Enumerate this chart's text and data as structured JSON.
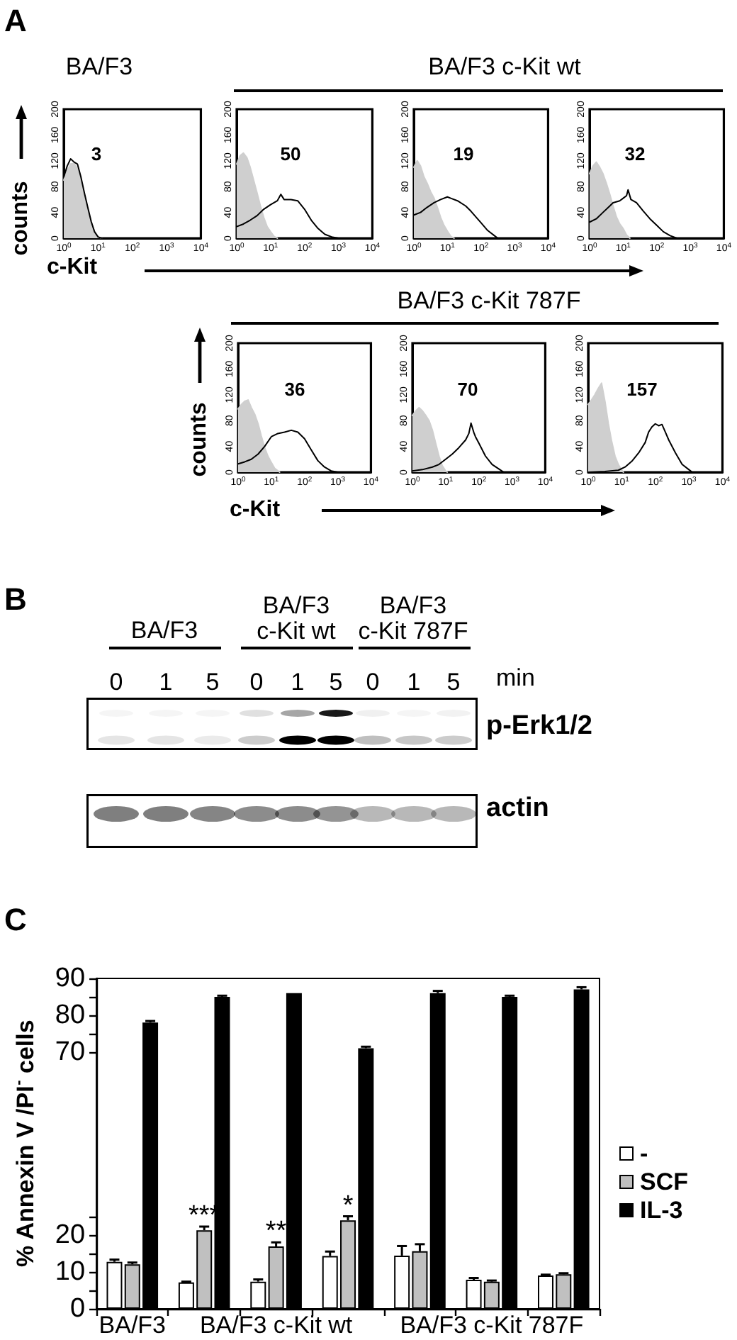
{
  "chart_data": [
    {
      "type": "line",
      "title": "BA/F3",
      "xlabel": "c-Kit",
      "ylabel": "counts",
      "annotations": [
        "A",
        "3"
      ],
      "log": "x",
      "xlim": [
        1,
        10000
      ],
      "xticks": [
        {
          "value": 1,
          "label": "10$^{0}$"
        },
        {
          "value": 10,
          "label": "10$^{1}$"
        },
        {
          "value": 100,
          "label": "10$^{2}$"
        },
        {
          "value": 1000,
          "label": "10$^{3}$"
        },
        {
          "value": 10000,
          "label": "10$^{4}$"
        }
      ],
      "ylim": [
        0,
        200
      ],
      "yticks": [
        0,
        40,
        80,
        120,
        160,
        200
      ],
      "series": [
        {
          "type": "area",
          "color": "#cfcfcf",
          "x": [
            1,
            1.26,
            1.58,
            2,
            2.5,
            3.16,
            4,
            5,
            6.3,
            7.9,
            10,
            12.6
          ],
          "values": [
            90,
            105,
            115,
            116,
            108,
            90,
            65,
            45,
            25,
            10,
            2,
            0
          ]
        },
        {
          "type": "line",
          "color": "#000000",
          "x": [
            1,
            1.26,
            1.58,
            2,
            2.5,
            3.16,
            4,
            5,
            6.3,
            7.9,
            10,
            12.6
          ],
          "values": [
            95,
            112,
            123,
            118,
            115,
            95,
            70,
            48,
            26,
            10,
            2,
            0
          ]
        }
      ]
    },
    {
      "type": "line",
      "annotations": [
        "50"
      ],
      "log": "x",
      "xlim": [
        1,
        10000
      ],
      "xticks": [
        {
          "value": 1,
          "label": "10$^{0}$"
        },
        {
          "value": 10,
          "label": "10$^{1}$"
        },
        {
          "value": 100,
          "label": "10$^{2}$"
        },
        {
          "value": 1000,
          "label": "10$^{3}$"
        },
        {
          "value": 10000,
          "label": "10$^{4}$"
        }
      ],
      "ylim": [
        0,
        200
      ],
      "yticks": [
        0,
        40,
        80,
        120,
        160,
        200
      ],
      "series": [
        {
          "type": "area",
          "color": "#cfcfcf",
          "x": [
            1,
            1.26,
            1.58,
            2,
            2.5,
            3.16,
            4,
            5,
            6.3,
            7.9,
            10,
            12.6,
            15.8
          ],
          "values": [
            115,
            128,
            132,
            125,
            110,
            90,
            70,
            50,
            32,
            18,
            10,
            3,
            0
          ]
        },
        {
          "type": "line",
          "color": "#000000",
          "x": [
            1,
            1.58,
            2.5,
            4,
            6.3,
            10,
            15.8,
            20,
            25,
            40,
            63,
            100,
            158,
            251,
            398,
            631,
            1000
          ],
          "values": [
            18,
            22,
            28,
            35,
            45,
            52,
            58,
            68,
            60,
            60,
            58,
            45,
            28,
            15,
            6,
            2,
            0
          ]
        }
      ]
    },
    {
      "type": "line",
      "title": "BA/F3 c-Kit wt",
      "annotations": [
        "19"
      ],
      "log": "x",
      "xlim": [
        1,
        10000
      ],
      "xticks": [
        {
          "value": 1,
          "label": "10$^{0}$"
        },
        {
          "value": 10,
          "label": "10$^{1}$"
        },
        {
          "value": 100,
          "label": "10$^{2}$"
        },
        {
          "value": 1000,
          "label": "10$^{3}$"
        },
        {
          "value": 10000,
          "label": "10$^{4}$"
        }
      ],
      "ylim": [
        0,
        200
      ],
      "yticks": [
        0,
        40,
        80,
        120,
        160,
        200
      ],
      "series": [
        {
          "type": "area",
          "color": "#cfcfcf",
          "x": [
            1,
            1.26,
            1.58,
            2,
            2.5,
            3.16,
            4,
            5,
            6.3,
            7.9,
            10,
            12.6,
            15.8
          ],
          "values": [
            110,
            120,
            112,
            95,
            85,
            72,
            62,
            48,
            32,
            20,
            11,
            3,
            0
          ]
        },
        {
          "type": "line",
          "color": "#000000",
          "x": [
            1,
            1.58,
            2.5,
            4,
            6.3,
            10,
            12.6,
            20,
            35,
            50,
            79,
            100,
            158,
            251,
            316
          ],
          "values": [
            36,
            40,
            48,
            55,
            60,
            64,
            62,
            58,
            50,
            42,
            30,
            24,
            12,
            4,
            0
          ]
        }
      ]
    },
    {
      "type": "line",
      "annotations": [
        "32"
      ],
      "log": "x",
      "xlim": [
        1,
        10000
      ],
      "xticks": [
        {
          "value": 1,
          "label": "10$^{0}$"
        },
        {
          "value": 10,
          "label": "10$^{1}$"
        },
        {
          "value": 100,
          "label": "10$^{2}$"
        },
        {
          "value": 1000,
          "label": "10$^{3}$"
        },
        {
          "value": 10000,
          "label": "10$^{4}$"
        }
      ],
      "ylim": [
        0,
        200
      ],
      "yticks": [
        0,
        40,
        80,
        120,
        160,
        200
      ],
      "series": [
        {
          "type": "area",
          "color": "#cfcfcf",
          "x": [
            1,
            1.26,
            1.58,
            2,
            2.5,
            3.16,
            4,
            5,
            6.3,
            7.9,
            10,
            12.6,
            15.8
          ],
          "values": [
            100,
            112,
            118,
            110,
            100,
            85,
            68,
            50,
            33,
            22,
            15,
            5,
            0
          ]
        },
        {
          "type": "line",
          "color": "#000000",
          "x": [
            1,
            1.58,
            2.5,
            4,
            5,
            7.9,
            10,
            12.6,
            14,
            17,
            25,
            40,
            63,
            100,
            158,
            251,
            398
          ],
          "values": [
            25,
            30,
            40,
            50,
            55,
            58,
            62,
            66,
            75,
            60,
            55,
            42,
            30,
            20,
            10,
            4,
            0
          ]
        }
      ]
    },
    {
      "type": "line",
      "xlabel": "c-Kit",
      "ylabel": "counts",
      "annotations": [
        "36"
      ],
      "log": "x",
      "xlim": [
        1,
        10000
      ],
      "xticks": [
        {
          "value": 1,
          "label": "10$^{0}$"
        },
        {
          "value": 10,
          "label": "10$^{1}$"
        },
        {
          "value": 100,
          "label": "10$^{2}$"
        },
        {
          "value": 1000,
          "label": "10$^{3}$"
        },
        {
          "value": 10000,
          "label": "10$^{4}$"
        }
      ],
      "ylim": [
        0,
        200
      ],
      "yticks": [
        0,
        40,
        80,
        120,
        160,
        200
      ],
      "series": [
        {
          "type": "area",
          "color": "#cfcfcf",
          "x": [
            1,
            1.26,
            1.58,
            2,
            2.5,
            3.16,
            4,
            5,
            6.3,
            7.9,
            10,
            12.6,
            17.8
          ],
          "values": [
            98,
            105,
            110,
            112,
            100,
            90,
            75,
            56,
            38,
            25,
            15,
            6,
            0
          ]
        },
        {
          "type": "line",
          "color": "#000000",
          "x": [
            1,
            1.58,
            2.5,
            4,
            6.3,
            10,
            15.8,
            25,
            40,
            63,
            100,
            158,
            251,
            398,
            631,
            1000
          ],
          "values": [
            13,
            16,
            20,
            28,
            40,
            55,
            60,
            62,
            65,
            62,
            52,
            35,
            18,
            8,
            2,
            0
          ]
        }
      ]
    },
    {
      "type": "line",
      "title": "BA/F3 c-Kit 787F",
      "annotations": [
        "70"
      ],
      "log": "x",
      "xlim": [
        1,
        10000
      ],
      "xticks": [
        {
          "value": 1,
          "label": "10$^{0}$"
        },
        {
          "value": 10,
          "label": "10$^{1}$"
        },
        {
          "value": 100,
          "label": "10$^{2}$"
        },
        {
          "value": 1000,
          "label": "10$^{3}$"
        },
        {
          "value": 10000,
          "label": "10$^{4}$"
        }
      ],
      "ylim": [
        0,
        200
      ],
      "yticks": [
        0,
        40,
        80,
        120,
        160,
        200
      ],
      "series": [
        {
          "type": "area",
          "color": "#cfcfcf",
          "x": [
            1,
            1.26,
            1.58,
            2,
            2.5,
            3.16,
            4,
            5,
            6.3,
            7.9,
            10,
            11.2
          ],
          "values": [
            88,
            95,
            100,
            95,
            88,
            80,
            65,
            45,
            25,
            10,
            2,
            0
          ]
        },
        {
          "type": "line",
          "color": "#000000",
          "x": [
            1,
            2,
            4,
            6.3,
            10,
            15.8,
            25,
            40,
            50,
            58,
            70,
            79,
            100,
            158,
            251,
            398,
            562
          ],
          "values": [
            2,
            4,
            8,
            12,
            20,
            28,
            38,
            50,
            60,
            76,
            62,
            55,
            45,
            25,
            12,
            5,
            0
          ]
        }
      ]
    },
    {
      "type": "line",
      "annotations": [
        "157"
      ],
      "log": "x",
      "xlim": [
        1,
        10000
      ],
      "xticks": [
        {
          "value": 1,
          "label": "10$^{0}$"
        },
        {
          "value": 10,
          "label": "10$^{1}$"
        },
        {
          "value": 100,
          "label": "10$^{2}$"
        },
        {
          "value": 1000,
          "label": "10$^{3}$"
        },
        {
          "value": 10000,
          "label": "10$^{4}$"
        }
      ],
      "ylim": [
        0,
        200
      ],
      "yticks": [
        0,
        40,
        80,
        120,
        160,
        200
      ],
      "series": [
        {
          "type": "area",
          "color": "#cfcfcf",
          "x": [
            1,
            1.26,
            1.58,
            2,
            2.5,
            3.16,
            4,
            5,
            6.3,
            7.9,
            10,
            11.2
          ],
          "values": [
            105,
            112,
            120,
            130,
            138,
            110,
            75,
            48,
            25,
            12,
            3,
            0
          ]
        },
        {
          "type": "line",
          "color": "#000000",
          "x": [
            1,
            3.16,
            7.9,
            12.6,
            20,
            32,
            50,
            63,
            79,
            100,
            126,
            158,
            200,
            251,
            398,
            631,
            1000,
            1259
          ],
          "values": [
            0,
            1,
            3,
            8,
            17,
            30,
            46,
            62,
            70,
            75,
            72,
            74,
            62,
            50,
            30,
            12,
            4,
            0
          ]
        }
      ]
    },
    {
      "type": "other",
      "annotations": [
        "B",
        "BA/F3",
        "BA/F3 c-Kit wt",
        "BA/F3 c-Kit 787F"
      ],
      "categories": [
        "0",
        "1",
        "5",
        "0",
        "1",
        "5",
        "0",
        "1",
        "5"
      ],
      "xlabel": "min",
      "y_categories": [
        "p-Erk1/2",
        "actin"
      ]
    },
    {
      "type": "bar",
      "annotations": [
        "C"
      ],
      "ylabel": "% Annexin V /PI$^{-}$ cells",
      "categories": [
        "BA/F3",
        null,
        "BA/F3 c-Kit wt",
        null,
        null,
        "BA/F3 c-Kit 787F",
        null
      ],
      "ylim": [
        0,
        90
      ],
      "yticks": [
        0,
        {
          "value": 5,
          "label": null
        },
        10,
        {
          "value": 15,
          "label": null
        },
        20,
        {
          "value": 25,
          "label": null
        },
        70,
        {
          "value": 75,
          "label": null
        },
        80,
        {
          "value": 85,
          "label": null
        },
        90
      ],
      "legend": "right",
      "series": [
        {
          "name": "-",
          "color": "#ffffff",
          "values": [
            12.8,
            7.2,
            7.4,
            14.4,
            14.5,
            7.9,
            9.1
          ],
          "errors": [
            [
              12.8,
              13.4
            ],
            [
              7.2,
              7.4
            ],
            [
              7.4,
              8.0
            ],
            [
              14.4,
              15.6
            ],
            [
              14.5,
              17.1
            ],
            [
              7.9,
              8.4
            ],
            [
              9.1,
              9.3
            ]
          ]
        },
        {
          "name": "SCF",
          "color": "#c0c0c0",
          "values": [
            12.1,
            21.4,
            17.0,
            24.1,
            15.7,
            7.4,
            9.4
          ],
          "errors": [
            [
              12.1,
              12.6
            ],
            [
              21.4,
              22.4
            ],
            [
              17.0,
              18.1
            ],
            [
              24.1,
              25.2
            ],
            [
              15.7,
              17.6
            ],
            [
              7.4,
              7.7
            ],
            [
              9.4,
              9.7
            ]
          ],
          "value_labels": [
            null,
            "***",
            "**",
            "*",
            null,
            null,
            null
          ]
        },
        {
          "name": "IL-3",
          "color": "#000000",
          "values": [
            78,
            85,
            86,
            71,
            86,
            85,
            87
          ],
          "errors": [
            [
              78,
              78.4
            ],
            [
              85,
              85.3
            ],
            null,
            [
              71,
              71.4
            ],
            [
              86,
              86.6
            ],
            [
              85,
              85.3
            ],
            [
              87,
              87.6
            ]
          ]
        }
      ]
    }
  ]
}
